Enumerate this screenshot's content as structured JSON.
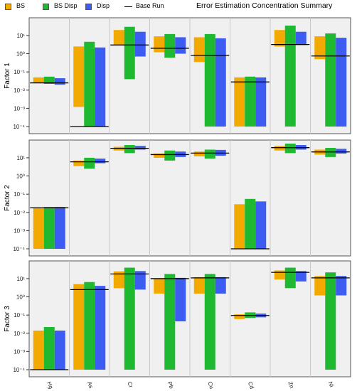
{
  "chart_data": {
    "type": "bar",
    "title": "Error Estimation Concentration Summary",
    "categories": [
      "Hg",
      "As",
      "Cr",
      "Pb",
      "Cu",
      "Cd",
      "Zn",
      "Ni"
    ],
    "y_scale": "log",
    "ylim": [
      0.0001,
      60
    ],
    "y_ticks": [
      "10⁻⁴",
      "10⁻³",
      "10⁻²",
      "10⁻¹",
      "10⁰",
      "10¹"
    ],
    "grid": false,
    "legend_position": "top-left",
    "legend": [
      {
        "label": "BS",
        "color": "#F2A900",
        "kind": "bar"
      },
      {
        "label": "BS Disp",
        "color": "#1FB831",
        "kind": "bar"
      },
      {
        "label": "Disp",
        "color": "#3D5CF2",
        "kind": "bar"
      },
      {
        "label": "Base Run",
        "color": "#000000",
        "kind": "line"
      }
    ],
    "panels": [
      {
        "ylabel": "Factor 1",
        "series": [
          {
            "name": "BS",
            "color": "#F2A900",
            "ranges": [
              [
                0.025,
                0.05
              ],
              [
                0.0012,
                2.5
              ],
              [
                3,
                20
              ],
              [
                1.2,
                9
              ],
              [
                0.35,
                8
              ],
              [
                0.0001,
                0.05
              ],
              [
                2.5,
                20
              ],
              [
                0.5,
                9
              ]
            ]
          },
          {
            "name": "BS Disp",
            "color": "#1FB831",
            "ranges": [
              [
                0.022,
                0.055
              ],
              [
                0.0001,
                4.5
              ],
              [
                0.04,
                30
              ],
              [
                0.6,
                12
              ],
              [
                0.0001,
                12
              ],
              [
                0.0001,
                0.055
              ],
              [
                0.0001,
                35
              ],
              [
                0.0001,
                13
              ]
            ]
          },
          {
            "name": "Disp",
            "color": "#3D5CF2",
            "ranges": [
              [
                0.02,
                0.045
              ],
              [
                0.0001,
                2.2
              ],
              [
                0.7,
                16
              ],
              [
                1,
                8
              ],
              [
                0.0001,
                7
              ],
              [
                0.0001,
                0.05
              ],
              [
                3,
                16
              ],
              [
                0.0001,
                7.5
              ]
            ]
          }
        ],
        "base_run": [
          0.025,
          0.0001,
          3,
          2,
          0.8,
          0.028,
          3.2,
          0.75
        ]
      },
      {
        "ylabel": "Factor 2",
        "series": [
          {
            "name": "BS",
            "color": "#F2A900",
            "ranges": [
              [
                0.0001,
                0.018
              ],
              [
                3.5,
                7
              ],
              [
                25,
                40
              ],
              [
                10,
                17
              ],
              [
                12,
                22
              ],
              [
                0.0001,
                0.028
              ],
              [
                25,
                45
              ],
              [
                15,
                28
              ]
            ]
          },
          {
            "name": "BS Disp",
            "color": "#1FB831",
            "ranges": [
              [
                0.0001,
                0.02
              ],
              [
                2.5,
                10
              ],
              [
                18,
                50
              ],
              [
                7,
                25
              ],
              [
                9,
                28
              ],
              [
                0.0001,
                0.055
              ],
              [
                18,
                60
              ],
              [
                11,
                35
              ]
            ]
          },
          {
            "name": "Disp",
            "color": "#3D5CF2",
            "ranges": [
              [
                0.0001,
                0.02
              ],
              [
                5,
                9
              ],
              [
                28,
                45
              ],
              [
                11,
                22
              ],
              [
                13,
                27
              ],
              [
                0.0001,
                0.04
              ],
              [
                28,
                50
              ],
              [
                17,
                31
              ]
            ]
          }
        ],
        "base_run": [
          0.018,
          6,
          33,
          15,
          18,
          0.0001,
          36,
          21
        ]
      },
      {
        "ylabel": "Factor 3",
        "series": [
          {
            "name": "BS",
            "color": "#F2A900",
            "ranges": [
              [
                0.0001,
                0.014
              ],
              [
                0.0001,
                5
              ],
              [
                3,
                25
              ],
              [
                1.5,
                10
              ],
              [
                1.5,
                12
              ],
              [
                0.06,
                0.11
              ],
              [
                9,
                28
              ],
              [
                1.2,
                14
              ]
            ]
          },
          {
            "name": "BS Disp",
            "color": "#1FB831",
            "ranges": [
              [
                0.0001,
                0.022
              ],
              [
                0.0001,
                6.5
              ],
              [
                0.0001,
                40
              ],
              [
                0.0001,
                18
              ],
              [
                0.0001,
                18
              ],
              [
                0.07,
                0.14
              ],
              [
                3,
                40
              ],
              [
                0.0001,
                22
              ]
            ]
          },
          {
            "name": "Disp",
            "color": "#3D5CF2",
            "ranges": [
              [
                0.0001,
                0.014
              ],
              [
                0.0001,
                4
              ],
              [
                2.5,
                26
              ],
              [
                0.045,
                11
              ],
              [
                1.5,
                12
              ],
              [
                0.075,
                0.12
              ],
              [
                7,
                26
              ],
              [
                1.2,
                14
              ]
            ]
          }
        ],
        "base_run": [
          0.0001,
          2.5,
          18,
          10,
          11,
          0.095,
          22,
          11
        ]
      }
    ]
  }
}
